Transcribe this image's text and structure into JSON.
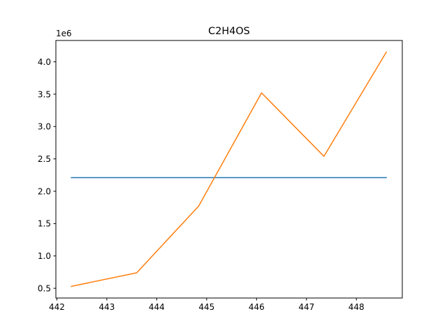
{
  "chart_data": {
    "type": "line",
    "title": "C2H4OS",
    "xlabel": "",
    "ylabel": "",
    "y_offset_label": "1e6",
    "xlim": [
      441.98,
      448.92
    ],
    "ylim": [
      0.35,
      4.33
    ],
    "y_unit_scale": 1000000,
    "grid": false,
    "xticks": [
      442,
      443,
      444,
      445,
      446,
      447,
      448
    ],
    "yticks": [
      0.5,
      1.0,
      1.5,
      2.0,
      2.5,
      3.0,
      3.5,
      4.0
    ],
    "ytick_labels": [
      "0.5",
      "1.0",
      "1.5",
      "2.0",
      "2.5",
      "3.0",
      "3.5",
      "4.0"
    ],
    "series": [
      {
        "color": "#1f77b4",
        "x": [
          442.29,
          448.6
        ],
        "y": [
          2.21,
          2.21
        ]
      },
      {
        "color": "#ff7f0e",
        "x": [
          442.29,
          443.6,
          444.84,
          446.1,
          447.35,
          448.6
        ],
        "y": [
          0.53,
          0.74,
          1.77,
          3.52,
          2.54,
          4.15
        ]
      }
    ]
  }
}
